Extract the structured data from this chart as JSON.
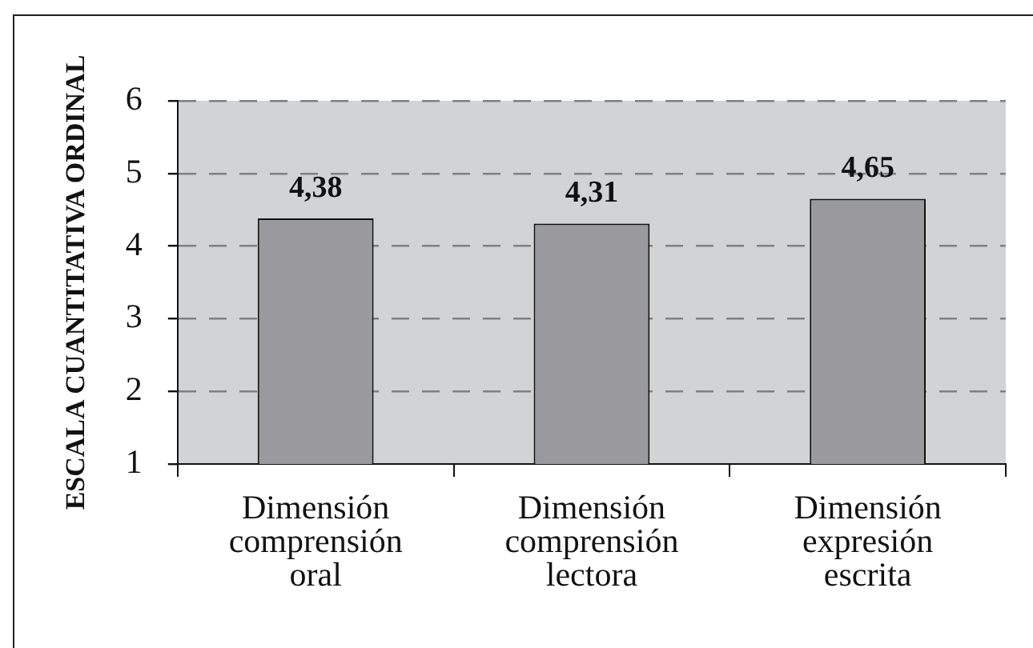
{
  "chart_data": {
    "type": "bar",
    "ylabel": "ESCALA CUANTITATIVA ORDINAL",
    "categories": [
      "Dimensión comprensión oral",
      "Dimensión comprensión lectora",
      "Dimensión expresión escrita"
    ],
    "values": [
      4.38,
      4.31,
      4.65
    ],
    "value_labels": [
      "4,38",
      "4,31",
      "4,65"
    ],
    "color": "#9a9a9e",
    "ylim": [
      1,
      6
    ],
    "yticks": [
      1,
      2,
      3,
      4,
      5,
      6
    ],
    "grid": "y"
  }
}
